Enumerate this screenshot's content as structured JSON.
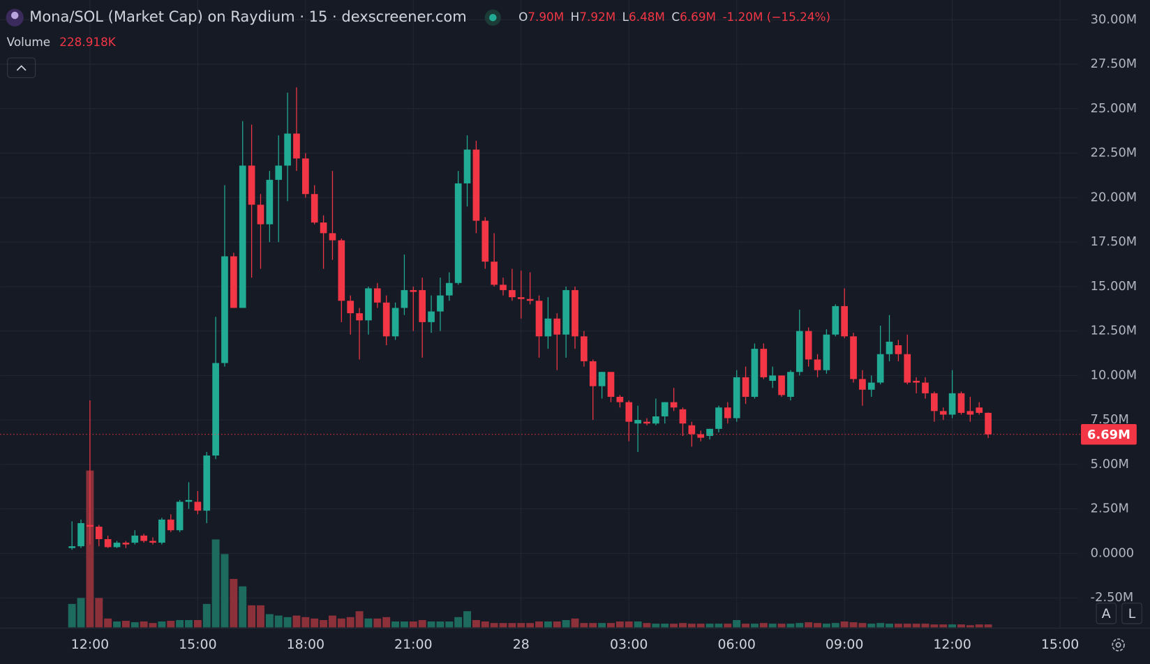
{
  "chart_data": {
    "type": "candlestick",
    "title": "Mona/SOL (Market Cap) on Raydium · 15 · dexscreener.com",
    "legend": [
      {
        "key": "O",
        "value": "7.90M"
      },
      {
        "key": "H",
        "value": "7.92M"
      },
      {
        "key": "L",
        "value": "6.48M"
      },
      {
        "key": "C",
        "value": "6.69M"
      }
    ],
    "change": "-1.20M (−15.24%)",
    "volume_title": "Volume",
    "volume_value": "228.918K",
    "current_price_label": "6.69M",
    "scale_buttons": [
      "A",
      "L"
    ],
    "up_color": "#22ab94",
    "down_color": "#f23645",
    "volume_up_color": "#1d6b5e",
    "volume_down_color": "#8c303a",
    "grid": true,
    "x": [
      "11:30",
      "11:45",
      "12:00",
      "12:15",
      "12:30",
      "12:45",
      "13:00",
      "13:15",
      "13:30",
      "13:45",
      "14:00",
      "14:15",
      "14:30",
      "14:45",
      "15:00",
      "15:15",
      "15:30",
      "15:45",
      "16:00",
      "16:15",
      "16:30",
      "16:45",
      "17:00",
      "17:15",
      "17:30",
      "17:45",
      "18:00",
      "18:15",
      "18:30",
      "18:45",
      "19:00",
      "19:15",
      "19:30",
      "19:45",
      "20:00",
      "20:15",
      "20:30",
      "20:45",
      "21:00",
      "21:15",
      "21:30",
      "21:45",
      "22:00",
      "22:15",
      "22:30",
      "22:45",
      "23:00",
      "23:15",
      "23:30",
      "23:45",
      "00:00",
      "00:15",
      "00:30",
      "00:45",
      "01:00",
      "01:15",
      "01:30",
      "01:45",
      "02:00",
      "02:15",
      "02:30",
      "02:45",
      "03:00",
      "03:15",
      "03:30",
      "03:45",
      "04:00",
      "04:15",
      "04:30",
      "04:45",
      "05:00",
      "05:15",
      "05:30",
      "05:45",
      "06:00",
      "06:15",
      "06:30",
      "06:45",
      "07:00",
      "07:15",
      "07:30",
      "07:45",
      "08:00",
      "08:15",
      "08:30",
      "08:45",
      "09:00",
      "09:15",
      "09:30",
      "09:45",
      "10:00",
      "10:15",
      "10:30",
      "10:45",
      "11:00",
      "11:15",
      "11:30",
      "11:45",
      "12:00",
      "12:15",
      "12:30",
      "12:45",
      "13:00"
    ],
    "open": [
      0.3,
      0.4,
      1.6,
      1.5,
      0.8,
      0.35,
      0.6,
      0.6,
      1.0,
      0.7,
      0.6,
      1.9,
      1.3,
      2.9,
      2.9,
      2.4,
      5.5,
      10.7,
      16.7,
      13.8,
      21.8,
      19.6,
      18.5,
      21.0,
      21.8,
      23.6,
      22.2,
      20.2,
      18.6,
      18.0,
      17.6,
      14.2,
      13.5,
      13.1,
      14.9,
      14.1,
      12.2,
      13.8,
      14.8,
      14.8,
      13.0,
      13.6,
      14.5,
      15.2,
      20.8,
      22.7,
      18.7,
      16.4,
      15.1,
      14.8,
      14.4,
      14.3,
      14.2,
      12.2,
      13.2,
      12.3,
      14.8,
      12.2,
      10.8,
      9.4,
      10.2,
      8.8,
      8.5,
      7.3,
      7.4,
      7.3,
      7.7,
      8.5,
      8.1,
      7.2,
      6.7,
      6.6,
      7.0,
      8.2,
      7.6,
      9.9,
      8.8,
      11.5,
      9.7,
      10.0,
      8.8,
      10.2,
      12.5,
      10.9,
      10.3,
      12.3,
      13.9,
      12.2,
      9.8,
      9.2,
      9.6,
      11.2,
      11.7,
      11.2,
      9.7,
      9.6,
      9.0,
      8.0,
      7.8,
      9.0,
      8.0,
      8.2,
      7.9
    ],
    "high": [
      1.8,
      1.9,
      8.6,
      1.6,
      1.0,
      0.7,
      0.7,
      1.3,
      1.1,
      0.9,
      2.0,
      2.2,
      3.0,
      4.0,
      3.5,
      5.7,
      13.3,
      20.7,
      16.9,
      24.3,
      24.1,
      20.2,
      21.5,
      23.5,
      25.9,
      26.2,
      22.5,
      20.7,
      19.0,
      21.5,
      17.7,
      14.5,
      13.8,
      15.0,
      15.2,
      14.5,
      14.1,
      16.8,
      15.0,
      15.5,
      14.5,
      15.5,
      15.8,
      21.5,
      23.5,
      23.2,
      18.9,
      18.0,
      15.5,
      16.0,
      15.9,
      15.8,
      14.5,
      14.4,
      13.5,
      15.0,
      15.0,
      12.5,
      10.9,
      10.2,
      10.2,
      8.9,
      8.6,
      8.3,
      7.6,
      8.7,
      8.5,
      9.3,
      8.2,
      7.4,
      6.9,
      7.0,
      8.3,
      8.5,
      10.3,
      10.5,
      11.8,
      11.8,
      10.5,
      10.0,
      10.3,
      13.7,
      12.7,
      11.2,
      12.6,
      14.0,
      14.9,
      12.4,
      10.3,
      10.0,
      12.8,
      13.4,
      12.0,
      12.3,
      9.9,
      9.9,
      9.1,
      8.2,
      10.3,
      9.1,
      8.8,
      8.5,
      7.92
    ],
    "low": [
      0.2,
      0.3,
      0.5,
      0.4,
      0.3,
      0.3,
      0.3,
      0.5,
      0.6,
      0.5,
      0.5,
      1.2,
      1.2,
      2.5,
      2.2,
      1.7,
      5.3,
      10.5,
      13.8,
      13.8,
      15.5,
      16.0,
      17.5,
      17.5,
      19.8,
      21.5,
      20.0,
      18.5,
      16.0,
      16.5,
      13.0,
      12.3,
      10.9,
      12.3,
      13.8,
      11.7,
      12.0,
      13.4,
      12.5,
      11.0,
      12.4,
      12.5,
      14.2,
      15.1,
      19.5,
      18.0,
      16.0,
      15.0,
      14.5,
      14.2,
      13.2,
      14.0,
      11.0,
      11.5,
      10.3,
      11.0,
      11.5,
      10.5,
      7.5,
      8.7,
      8.5,
      8.2,
      6.3,
      5.7,
      7.2,
      7.2,
      7.3,
      8.0,
      6.6,
      6.0,
      6.3,
      6.4,
      6.8,
      7.3,
      7.4,
      8.4,
      8.7,
      9.8,
      9.3,
      8.8,
      8.6,
      10.0,
      10.5,
      9.9,
      10.1,
      12.2,
      12.1,
      9.6,
      8.3,
      8.8,
      9.5,
      10.8,
      10.8,
      9.5,
      9.0,
      8.7,
      7.4,
      7.5,
      7.6,
      7.8,
      7.4,
      7.8,
      6.48
    ],
    "close": [
      0.4,
      1.7,
      1.5,
      0.8,
      0.35,
      0.6,
      0.5,
      1.0,
      0.7,
      0.6,
      1.9,
      1.3,
      2.9,
      3.0,
      2.4,
      5.5,
      10.7,
      16.7,
      13.8,
      21.8,
      19.6,
      18.5,
      21.0,
      21.8,
      23.6,
      22.2,
      20.2,
      18.6,
      18.0,
      17.6,
      14.2,
      13.5,
      13.1,
      14.9,
      14.1,
      12.2,
      13.8,
      14.8,
      14.7,
      13.0,
      13.6,
      14.5,
      15.2,
      20.8,
      22.7,
      18.7,
      16.4,
      15.1,
      14.8,
      14.4,
      14.3,
      14.2,
      12.2,
      13.2,
      12.3,
      14.8,
      12.2,
      10.8,
      9.4,
      10.2,
      8.8,
      8.5,
      7.4,
      7.5,
      7.3,
      7.7,
      8.5,
      8.2,
      7.3,
      6.7,
      6.5,
      7.0,
      8.2,
      7.6,
      9.9,
      8.8,
      11.5,
      9.9,
      10.0,
      8.9,
      10.2,
      12.5,
      10.9,
      10.3,
      12.3,
      13.9,
      12.2,
      9.8,
      9.2,
      9.6,
      11.2,
      11.9,
      11.2,
      9.6,
      9.6,
      9.0,
      8.0,
      7.8,
      9.0,
      7.9,
      7.8,
      7.9,
      6.69
    ],
    "volume": [
      1830,
      2290,
      12240,
      2290,
      690,
      460,
      510,
      400,
      460,
      340,
      460,
      510,
      570,
      570,
      570,
      1830,
      6860,
      5720,
      3780,
      3200,
      1720,
      1720,
      1030,
      920,
      800,
      920,
      800,
      690,
      570,
      920,
      690,
      800,
      1260,
      690,
      690,
      800,
      460,
      460,
      460,
      570,
      460,
      460,
      460,
      800,
      1260,
      570,
      460,
      340,
      340,
      340,
      340,
      340,
      460,
      460,
      460,
      570,
      690,
      340,
      340,
      340,
      340,
      460,
      460,
      460,
      340,
      290,
      290,
      290,
      340,
      290,
      290,
      290,
      290,
      290,
      570,
      290,
      290,
      340,
      290,
      290,
      290,
      340,
      400,
      340,
      290,
      340,
      460,
      400,
      340,
      290,
      340,
      290,
      290,
      290,
      290,
      290,
      230,
      230,
      230,
      230,
      170,
      230,
      228.918
    ],
    "ylim": [
      -4.16,
      31.11
    ],
    "yticks": [
      {
        "value": 30,
        "label": "30.00M"
      },
      {
        "value": 27.5,
        "label": "27.50M"
      },
      {
        "value": 25,
        "label": "25.00M"
      },
      {
        "value": 22.5,
        "label": "22.50M"
      },
      {
        "value": 20,
        "label": "20.00M"
      },
      {
        "value": 17.5,
        "label": "17.50M"
      },
      {
        "value": 15,
        "label": "15.00M"
      },
      {
        "value": 12.5,
        "label": "12.50M"
      },
      {
        "value": 10,
        "label": "10.00M"
      },
      {
        "value": 7.5,
        "label": "7.50M"
      },
      {
        "value": 5,
        "label": "5.00M"
      },
      {
        "value": 2.5,
        "label": "2.50M"
      },
      {
        "value": 0,
        "label": "0.0000"
      },
      {
        "value": -2.5,
        "label": "-2.50M"
      }
    ],
    "xticks": [
      "12:00",
      "15:00",
      "18:00",
      "21:00",
      {
        "value": "00:00",
        "label": "28"
      },
      "03:00",
      "06:00",
      "09:00",
      "12:00",
      "15:00"
    ]
  }
}
